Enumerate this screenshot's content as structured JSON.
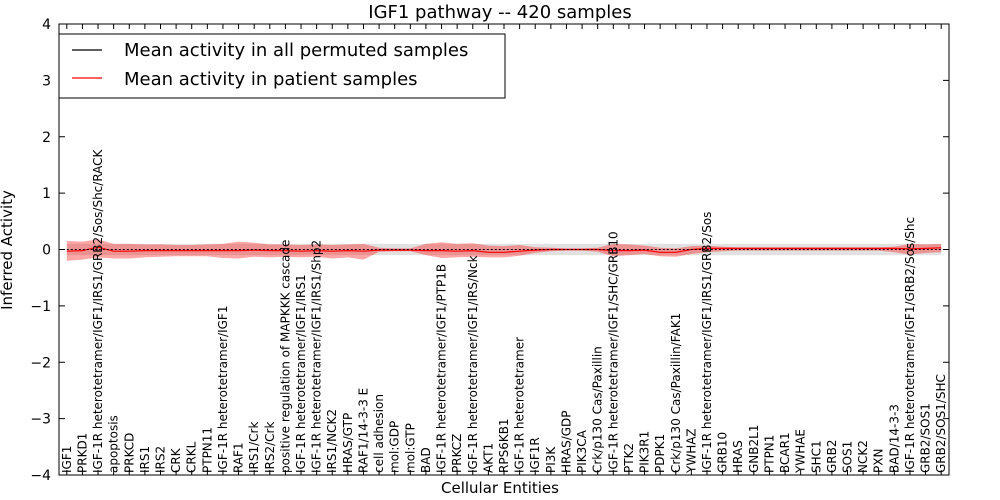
{
  "chart_data": {
    "type": "line",
    "title": "IGF1 pathway -- 420 samples",
    "xlabel": "Cellular Entities",
    "ylabel": "Inferred Activity",
    "ylim": [
      -4,
      4
    ],
    "yticks": [
      "−4",
      "−3",
      "−2",
      "−1",
      "0",
      "1",
      "2",
      "3",
      "4"
    ],
    "grid": false,
    "legend_position": "top-left",
    "categories": [
      "IGF1",
      "PRKD1",
      "IGF-1R heterotetramer/IGF1/IRS1/GRB2/Sos/Shc/RACK",
      "apoptosis",
      "PRKCD",
      "IRS1",
      "IRS2",
      "CRK",
      "CRKL",
      "PTPN11",
      "IGF-1R heterotetramer/IGF1",
      "RAF1",
      "IRS1/Crk",
      "IRS2/Crk",
      "positive regulation of MAPKKK cascade",
      "IGF-1R heterotetramer/IGF1/IRS1",
      "IGF-1R heterotetramer/IGF1/IRS1/Shp2",
      "IRS1/NCK2",
      "HRAS/GTP",
      "RAF1/14-3-3 E",
      "cell adhesion",
      "mol:GDP",
      "mol:GTP",
      "BAD",
      "IGF-1R heterotetramer/IGF1/PTP1B",
      "PRKCZ",
      "IGF-1R heterotetramer/IGF1/IRS/Nck",
      "AKT1",
      "RPS6KB1",
      "IGF-1R heterotetramer",
      "IGF1R",
      "PI3K",
      "HRAS/GDP",
      "PIK3CA",
      "Crk/p130 Cas/Paxillin",
      "IGF-1R heterotetramer/IGF1/SHC/GRB10",
      "PTK2",
      "PIK3R1",
      "PDPK1",
      "Crk/p130 Cas/Paxillin/FAK1",
      "YWHAZ",
      "IGF-1R heterotetramer/IGF1/IRS1/GRB2/Sos",
      "GRB10",
      "HRAS",
      "GNB2L1",
      "PTPN1",
      "BCAR1",
      "YWHAE",
      "SHC1",
      "GRB2",
      "SOS1",
      "NCK2",
      "PXN",
      "BAD/14-3-3",
      "IGF-1R heterotetramer/IGF1/GRB2/Sos/Shc",
      "GRB2/SOS1",
      "GRB2/SOS1/SHC"
    ],
    "series": [
      {
        "name": "Mean activity in all permuted samples",
        "color": "#000000",
        "values": [
          0,
          0,
          0,
          0,
          0,
          0,
          0,
          0,
          0,
          0,
          0,
          0,
          0,
          0,
          0,
          0,
          0,
          0,
          0,
          0,
          0,
          0,
          0,
          0,
          0,
          0,
          0,
          0,
          0,
          0,
          0,
          0,
          0,
          0,
          0,
          0,
          0,
          0,
          0,
          0,
          0,
          0,
          0,
          0,
          0,
          0,
          0,
          0,
          0,
          0,
          0,
          0,
          0,
          0,
          0,
          0,
          0
        ],
        "band_lower": [
          -0.1,
          -0.1,
          -0.1,
          -0.1,
          -0.1,
          -0.1,
          -0.1,
          -0.1,
          -0.1,
          -0.1,
          -0.1,
          -0.1,
          -0.1,
          -0.1,
          -0.1,
          -0.1,
          -0.1,
          -0.1,
          -0.1,
          -0.1,
          -0.1,
          -0.1,
          -0.1,
          -0.1,
          -0.1,
          -0.1,
          -0.1,
          -0.1,
          -0.1,
          -0.1,
          -0.1,
          -0.1,
          -0.1,
          -0.1,
          -0.1,
          -0.1,
          -0.1,
          -0.1,
          -0.1,
          -0.1,
          -0.1,
          -0.1,
          -0.1,
          -0.1,
          -0.1,
          -0.1,
          -0.1,
          -0.1,
          -0.1,
          -0.1,
          -0.1,
          -0.1,
          -0.1,
          -0.1,
          -0.1,
          -0.1,
          -0.1
        ],
        "band_upper": [
          0.1,
          0.1,
          0.1,
          0.1,
          0.1,
          0.1,
          0.1,
          0.1,
          0.1,
          0.1,
          0.1,
          0.1,
          0.1,
          0.1,
          0.1,
          0.1,
          0.1,
          0.1,
          0.1,
          0.1,
          0.1,
          0.1,
          0.1,
          0.1,
          0.1,
          0.1,
          0.1,
          0.1,
          0.1,
          0.1,
          0.1,
          0.1,
          0.1,
          0.1,
          0.1,
          0.1,
          0.1,
          0.1,
          0.1,
          0.1,
          0.1,
          0.1,
          0.1,
          0.1,
          0.1,
          0.1,
          0.1,
          0.1,
          0.1,
          0.1,
          0.1,
          0.1,
          0.1,
          0.1,
          0.1,
          0.1,
          0.1
        ]
      },
      {
        "name": "Mean activity in patient samples",
        "color": "#ff0000",
        "values": [
          -0.03,
          -0.02,
          0.04,
          -0.03,
          -0.03,
          -0.02,
          -0.02,
          -0.02,
          -0.02,
          -0.02,
          -0.02,
          -0.02,
          -0.01,
          -0.02,
          -0.02,
          -0.03,
          -0.02,
          -0.03,
          -0.02,
          -0.03,
          -0.01,
          -0.01,
          -0.01,
          -0.02,
          -0.02,
          -0.03,
          -0.02,
          -0.05,
          -0.05,
          -0.03,
          -0.01,
          0,
          0,
          0,
          0,
          -0.02,
          -0.02,
          -0.01,
          -0.05,
          -0.05,
          0,
          0.02,
          0.02,
          0.02,
          0.02,
          0.02,
          0.02,
          0.02,
          0.02,
          0.02,
          0.02,
          0.02,
          0.02,
          0.02,
          0.01,
          0.02,
          0.03
        ],
        "band_lower": [
          -0.2,
          -0.18,
          -0.14,
          -0.16,
          -0.16,
          -0.14,
          -0.13,
          -0.12,
          -0.12,
          -0.12,
          -0.15,
          -0.16,
          -0.13,
          -0.14,
          -0.13,
          -0.14,
          -0.13,
          -0.16,
          -0.14,
          -0.18,
          -0.04,
          -0.03,
          -0.03,
          -0.1,
          -0.15,
          -0.14,
          -0.13,
          -0.14,
          -0.14,
          -0.11,
          -0.06,
          -0.03,
          -0.02,
          -0.02,
          -0.04,
          -0.12,
          -0.1,
          -0.08,
          -0.12,
          -0.13,
          -0.08,
          -0.05,
          -0.03,
          -0.02,
          -0.02,
          -0.02,
          -0.02,
          -0.02,
          -0.02,
          -0.02,
          -0.02,
          -0.02,
          -0.02,
          -0.05,
          -0.09,
          -0.06,
          -0.05
        ],
        "band_upper": [
          0.15,
          0.14,
          0.18,
          0.1,
          0.1,
          0.09,
          0.09,
          0.08,
          0.08,
          0.09,
          0.1,
          0.14,
          0.12,
          0.09,
          0.09,
          0.08,
          0.09,
          0.08,
          0.09,
          0.1,
          0.03,
          0.02,
          0.02,
          0.1,
          0.13,
          0.1,
          0.11,
          0.07,
          0.06,
          0.08,
          0.04,
          0.03,
          0.02,
          0.02,
          0.03,
          0.1,
          0.09,
          0.07,
          0.03,
          0.02,
          0.06,
          0.07,
          0.05,
          0.04,
          0.04,
          0.04,
          0.04,
          0.04,
          0.04,
          0.04,
          0.04,
          0.04,
          0.04,
          0.05,
          0.1,
          0.09,
          0.1
        ]
      }
    ]
  }
}
